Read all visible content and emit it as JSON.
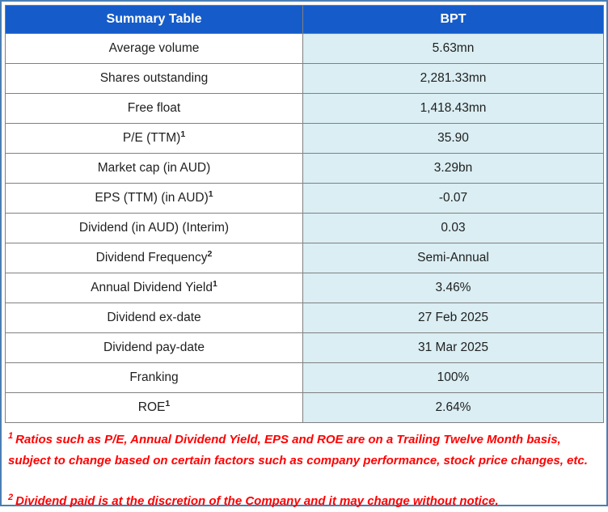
{
  "table": {
    "headers": [
      "Summary Table",
      "BPT"
    ],
    "rows": [
      {
        "label": "Average volume",
        "sup": "",
        "value": "5.63mn"
      },
      {
        "label": "Shares outstanding",
        "sup": "",
        "value": "2,281.33mn"
      },
      {
        "label": "Free float",
        "sup": "",
        "value": "1,418.43mn"
      },
      {
        "label": "P/E (TTM)",
        "sup": "1",
        "value": "35.90"
      },
      {
        "label": "Market cap (in AUD)",
        "sup": "",
        "value": "3.29bn"
      },
      {
        "label": "EPS (TTM) (in AUD)",
        "sup": "1",
        "value": "-0.07"
      },
      {
        "label": "Dividend (in AUD) (Interim)",
        "sup": "",
        "value": "0.03"
      },
      {
        "label": "Dividend Frequency",
        "sup": "2",
        "value": "Semi-Annual"
      },
      {
        "label": "Annual Dividend Yield",
        "sup": "1",
        "value": "3.46%"
      },
      {
        "label": "Dividend ex-date",
        "sup": "",
        "value": "27 Feb 2025"
      },
      {
        "label": "Dividend pay-date",
        "sup": "",
        "value": "31 Mar 2025"
      },
      {
        "label": "Franking",
        "sup": "",
        "value": "100%"
      },
      {
        "label": "ROE",
        "sup": "1",
        "value": "2.64%"
      }
    ]
  },
  "footnotes": [
    {
      "marker": "1",
      "text": "Ratios such as P/E, Annual Dividend Yield, EPS and ROE are on a Trailing Twelve Month basis, subject to change based on certain factors such as company performance, stock price changes, etc."
    },
    {
      "marker": "2",
      "text": "Dividend paid is at the discretion of the Company and it may change without notice."
    }
  ],
  "colors": {
    "header_bg": "#155CCA",
    "header_text": "#FFFFFF",
    "value_bg": "#DAEEF3",
    "grid_border": "#808080",
    "outer_border": "#4A7EB5",
    "footnote_text": "#FF0000",
    "body_text": "#1F1F1F"
  }
}
